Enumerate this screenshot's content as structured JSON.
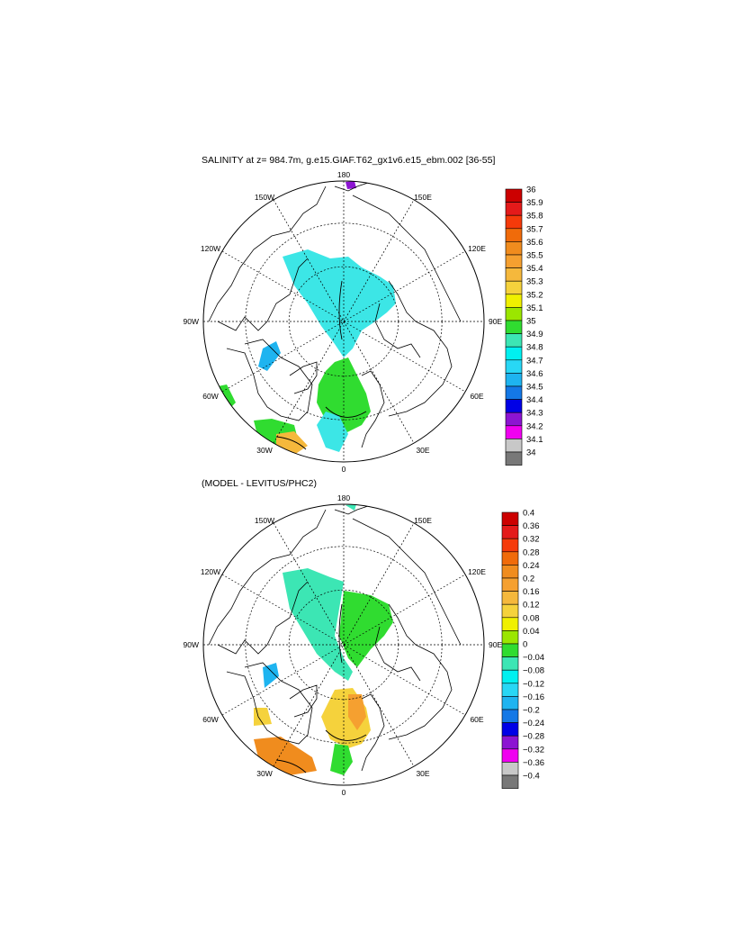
{
  "panels": [
    {
      "title": "SALINITY at z= 984.7m, g.e15.GIAF.T62_gx1v6.e15_ebm.002 [36-55]",
      "lon_labels": {
        "top": "180",
        "bottom": "0",
        "left": "90W",
        "right": "90E",
        "ul_150": "150W",
        "ul_120": "120W",
        "ur_150": "150E",
        "ur_120": "120E",
        "ll_60": "60W",
        "ll_30": "30W",
        "lr_60": "60E",
        "lr_30": "30E"
      },
      "colorbar": {
        "labels": [
          "36",
          "35.9",
          "35.8",
          "35.7",
          "35.6",
          "35.5",
          "35.4",
          "35.3",
          "35.2",
          "35.1",
          "35",
          "34.9",
          "34.8",
          "34.7",
          "34.6",
          "34.5",
          "34.4",
          "34.3",
          "34.2",
          "34.1",
          "34"
        ],
        "colors": [
          "#cc0000",
          "#e41a1a",
          "#f53a0a",
          "#f06b0a",
          "#f08c1e",
          "#f5a030",
          "#f5b83c",
          "#f5d23c",
          "#f0f000",
          "#9be600",
          "#30dc30",
          "#3ce6b4",
          "#00f0f0",
          "#28d7f5",
          "#1eb4f0",
          "#1478e6",
          "#0000e6",
          "#8c14d2",
          "#f000f0",
          "#c8c8c8",
          "#787878"
        ]
      }
    },
    {
      "title": "(MODEL - LEVITUS/PHC2)",
      "lon_labels": {
        "top": "180",
        "bottom": "0",
        "left": "90W",
        "right": "90E",
        "ul_150": "150W",
        "ul_120": "120W",
        "ur_150": "150E",
        "ur_120": "120E",
        "ll_60": "60W",
        "ll_30": "30W",
        "lr_60": "60E",
        "lr_30": "30E"
      },
      "colorbar": {
        "labels": [
          "0.4",
          "0.36",
          "0.32",
          "0.28",
          "0.24",
          "0.2",
          "0.16",
          "0.12",
          "0.08",
          "0.04",
          "0",
          "−0.04",
          "−0.08",
          "−0.12",
          "−0.16",
          "−0.2",
          "−0.24",
          "−0.28",
          "−0.32",
          "−0.36",
          "−0.4"
        ],
        "colors": [
          "#cc0000",
          "#e41a1a",
          "#f53a0a",
          "#f06b0a",
          "#f08c1e",
          "#f5a030",
          "#f5b83c",
          "#f5d23c",
          "#f0f000",
          "#9be600",
          "#30dc30",
          "#3ce6b4",
          "#00f0f0",
          "#28d7f5",
          "#1eb4f0",
          "#1478e6",
          "#0000e6",
          "#8c14d2",
          "#f000f0",
          "#c8c8c8",
          "#787878"
        ]
      }
    }
  ]
}
